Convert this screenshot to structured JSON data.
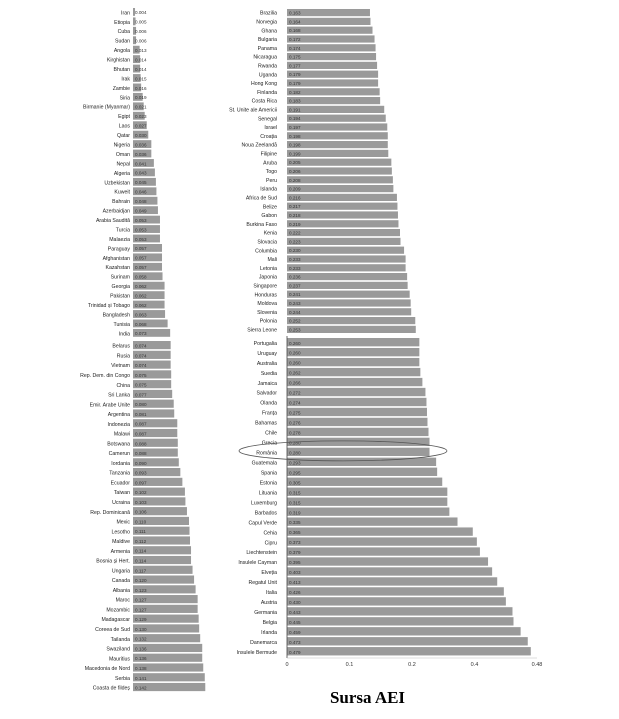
{
  "chart_data": {
    "type": "bar",
    "orientation": "horizontal",
    "source_label": "Sursa AEI",
    "highlighted": "România",
    "bar_color": "#9a9a9a",
    "x_tick_labels": [
      "0",
      "0.1",
      "0.2",
      "0.4",
      "0.48"
    ],
    "panels": [
      {
        "groups": [
          {
            "categories": [
              "Iran",
              "Etiopia",
              "Cuba",
              "Sudan",
              "Angola",
              "Kirghistan",
              "Bhutan",
              "Irak",
              "Zambie",
              "Siria",
              "Birmanie (Myanmar)",
              "Egipt",
              "Laos",
              "Qatar",
              "Nigeria",
              "Oman",
              "Nepal",
              "Algeria",
              "Uzbekistan",
              "Kuweit",
              "Bahrain",
              "Azerbaidjan",
              "Arabia Saudită",
              "Turcia",
              "Malaezia",
              "Paraguay",
              "Afghanistan",
              "Kazahstan",
              "Surinam",
              "Georgia",
              "Pakistan",
              "Trinidad și Tobago",
              "Bangladesh",
              "Tunisia",
              "India"
            ],
            "values": [
              0.004,
              0.005,
              0.006,
              0.006,
              0.013,
              0.014,
              0.014,
              0.015,
              0.016,
              0.019,
              0.021,
              0.023,
              0.027,
              0.03,
              0.036,
              0.036,
              0.041,
              0.043,
              0.045,
              0.046,
              0.048,
              0.049,
              0.053,
              0.053,
              0.053,
              0.057,
              0.057,
              0.057,
              0.058,
              0.062,
              0.062,
              0.062,
              0.063,
              0.068,
              0.073
            ]
          },
          {
            "categories": [
              "Belarus",
              "Rusia",
              "Vietnam",
              "Rep. Dem. din Congo",
              "China",
              "Sri Lanka",
              "Emir. Arabe Unite",
              "Argentina",
              "Indonezia",
              "Malawi",
              "Botswana",
              "Camerun",
              "Iordania",
              "Tanzania",
              "Ecuador",
              "Taiwan",
              "Ucraina",
              "Rep. Dominicană",
              "Mexic",
              "Lesotho",
              "Maldive",
              "Armenia",
              "Bosnia și Hert.",
              "Ungaria",
              "Canada",
              "Albania",
              "Maroc",
              "Mozambic",
              "Madagascar",
              "Coreea de Sud",
              "Tailanda",
              "Swaziland",
              "Mauritius",
              "Macedonia de Nord",
              "Serbia",
              "Coasta de fildeș"
            ],
            "values": [
              0.074,
              0.074,
              0.074,
              0.075,
              0.075,
              0.077,
              0.08,
              0.081,
              0.087,
              0.087,
              0.088,
              0.088,
              0.09,
              0.093,
              0.097,
              0.102,
              0.103,
              0.106,
              0.11,
              0.111,
              0.112,
              0.114,
              0.114,
              0.117,
              0.12,
              0.123,
              0.127,
              0.127,
              0.129,
              0.13,
              0.132,
              0.136,
              0.136,
              0.138,
              0.141,
              0.142
            ]
          }
        ]
      },
      {
        "groups": [
          {
            "categories": [
              "Brazilia",
              "Norvegia",
              "Ghana",
              "Bulgaria",
              "Panama",
              "Nicaragua",
              "Rwanda",
              "Uganda",
              "Hong Kong",
              "Finlanda",
              "Costa Rica",
              "St. Unite ale Americii",
              "Senegal",
              "Israel",
              "Croația",
              "Noua Zeelandă",
              "Filipine",
              "Aruba",
              "Togo",
              "Peru",
              "Islanda",
              "Africa de Sud",
              "Belize",
              "Gabon",
              "Burkina Faso",
              "Kenia",
              "Slovacia",
              "Columbia",
              "Mali",
              "Letonia",
              "Japonia",
              "Singapore",
              "Honduras",
              "Moldova",
              "Slovenia",
              "Polonia",
              "Sierra Leone"
            ],
            "values": [
              0.163,
              0.164,
              0.168,
              0.172,
              0.174,
              0.175,
              0.177,
              0.179,
              0.179,
              0.182,
              0.183,
              0.191,
              0.194,
              0.197,
              0.198,
              0.198,
              0.199,
              0.205,
              0.206,
              0.208,
              0.209,
              0.216,
              0.217,
              0.218,
              0.219,
              0.222,
              0.223,
              0.23,
              0.233,
              0.233,
              0.236,
              0.237,
              0.241,
              0.243,
              0.244,
              0.252,
              0.253
            ]
          },
          {
            "categories": [
              "Portugalia",
              "Uruguay",
              "Australia",
              "Suedia",
              "Jamaica",
              "Salvador",
              "Olanda",
              "Franța",
              "Bahamas",
              "Chile",
              "Grecia",
              "România",
              "Guatemala",
              "Spania",
              "Estonia",
              "Lituania",
              "Luxemburg",
              "Barbados",
              "Capul Verde",
              "Cehia",
              "Cipru",
              "Liechtenstein",
              "Insulele Cayman",
              "Elveția",
              "Regatul Unit",
              "Italia",
              "Austria",
              "Germania",
              "Belgia",
              "Irlanda",
              "Danemarca",
              "Insulele Bermude"
            ],
            "values": [
              0.26,
              0.26,
              0.26,
              0.262,
              0.266,
              0.272,
              0.274,
              0.275,
              0.276,
              0.278,
              0.28,
              0.28,
              0.293,
              0.295,
              0.305,
              0.315,
              0.315,
              0.319,
              0.335,
              0.365,
              0.373,
              0.379,
              0.395,
              0.403,
              0.413,
              0.426,
              0.43,
              0.443,
              0.445,
              0.459,
              0.473,
              0.479
            ]
          }
        ]
      }
    ]
  }
}
